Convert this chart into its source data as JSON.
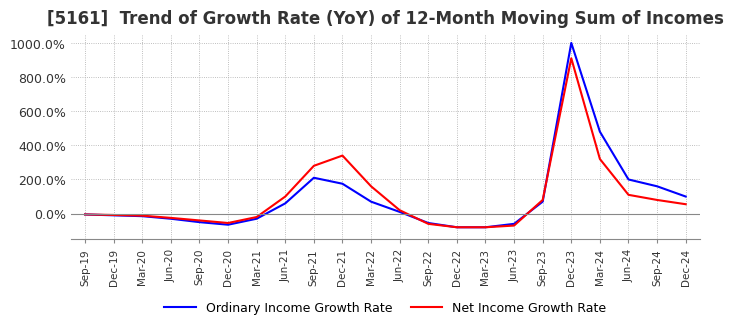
{
  "title": "[5161]  Trend of Growth Rate (YoY) of 12-Month Moving Sum of Incomes",
  "title_fontsize": 12,
  "ylim": [
    -150,
    1050
  ],
  "yticks": [
    0,
    200,
    400,
    600,
    800,
    1000
  ],
  "yticklabels": [
    "0.0%",
    "200.0%",
    "400.0%",
    "600.0%",
    "800.0%",
    "1000.0%"
  ],
  "legend_labels": [
    "Ordinary Income Growth Rate",
    "Net Income Growth Rate"
  ],
  "legend_colors": [
    "#0000ff",
    "#ff0000"
  ],
  "bg_color": "#ffffff",
  "grid_color": "#aaaaaa",
  "x_labels": [
    "Sep-19",
    "Dec-19",
    "Mar-20",
    "Jun-20",
    "Sep-20",
    "Dec-20",
    "Mar-21",
    "Jun-21",
    "Sep-21",
    "Dec-21",
    "Mar-22",
    "Jun-22",
    "Sep-22",
    "Dec-22",
    "Mar-23",
    "Jun-23",
    "Sep-23",
    "Dec-23",
    "Mar-24",
    "Jun-24",
    "Sep-24",
    "Dec-24"
  ],
  "ordinary_income": [
    -5,
    -10,
    -15,
    -30,
    -50,
    -65,
    -30,
    60,
    210,
    175,
    70,
    10,
    -55,
    -80,
    -80,
    -60,
    70,
    1000,
    480,
    200,
    160,
    100
  ],
  "net_income": [
    -5,
    -8,
    -12,
    -25,
    -40,
    -55,
    -20,
    100,
    280,
    340,
    160,
    20,
    -60,
    -80,
    -80,
    -70,
    80,
    910,
    320,
    110,
    80,
    55
  ]
}
